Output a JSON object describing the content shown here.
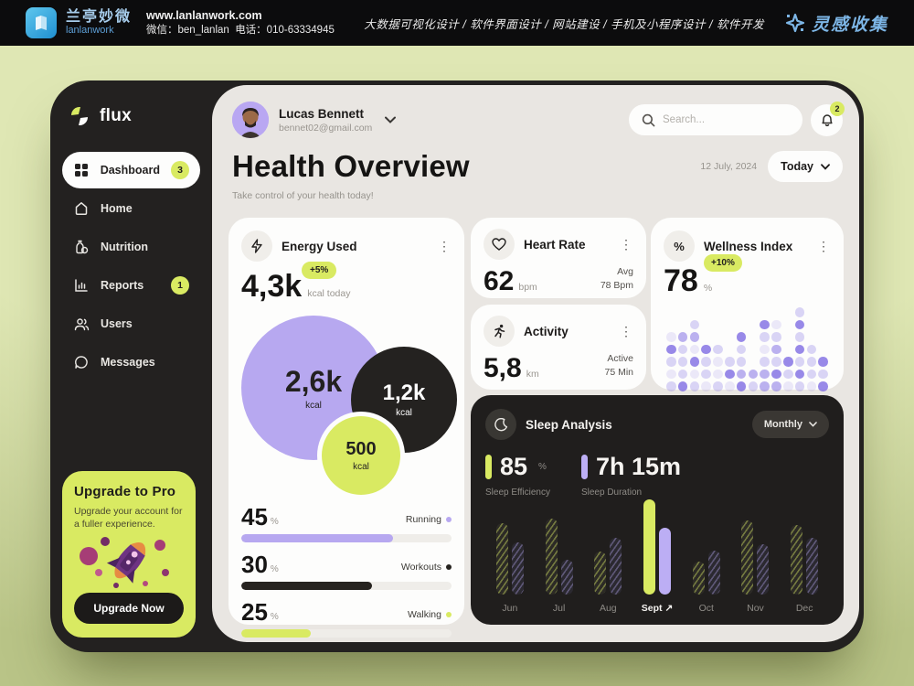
{
  "topbar": {
    "brand_cn": "兰亭妙微",
    "brand_en": "lanlanwork",
    "website": "www.lanlanwork.com",
    "wechat": "微信：ben_lanlan",
    "phone": "电话：010-63334945",
    "services": "大数据可视化设计 / 软件界面设计 / 网站建设 / 手机及小程序设计 / 软件开发",
    "collection": "灵感收集"
  },
  "sidebar": {
    "logo": "flux",
    "items": [
      {
        "label": "Dashboard",
        "icon": "grid-icon",
        "badge": "3",
        "active": true
      },
      {
        "label": "Home",
        "icon": "home-icon",
        "badge": "",
        "active": false
      },
      {
        "label": "Nutrition",
        "icon": "nutrition-icon",
        "badge": "",
        "active": false
      },
      {
        "label": "Reports",
        "icon": "reports-icon",
        "badge": "1",
        "active": false
      },
      {
        "label": "Users",
        "icon": "users-icon",
        "badge": "",
        "active": false
      },
      {
        "label": "Messages",
        "icon": "messages-icon",
        "badge": "",
        "active": false
      }
    ],
    "upgrade": {
      "title": "Upgrade to Pro",
      "description": "Upgrade your account for a fuller experience.",
      "button": "Upgrade Now"
    }
  },
  "header": {
    "user_name": "Lucas Bennett",
    "user_email": "bennet02@gmail.com",
    "search_placeholder": "Search...",
    "notification_count": "2",
    "date": "12 July, 2024",
    "range": "Today"
  },
  "page": {
    "title": "Health Overview",
    "subtitle": "Take control of your health today!"
  },
  "colors": {
    "lime": "#d9ea62",
    "purple": "#b7a8f0",
    "dark": "#26231f",
    "panel": "#e9e6e2"
  },
  "cards": {
    "energy": {
      "title": "Energy Used",
      "value": "4,3k",
      "badge": "+5%",
      "unit": "kcal today",
      "bubbles": [
        {
          "value": "2,6k",
          "unit": "kcal",
          "color": "purple"
        },
        {
          "value": "1,2k",
          "unit": "kcal",
          "color": "dark"
        },
        {
          "value": "500",
          "unit": "kcal",
          "color": "lime"
        }
      ],
      "breakdown": [
        {
          "value": "45",
          "unit": "%",
          "label": "Running",
          "color": "purple",
          "fill_pct": 72
        },
        {
          "value": "30",
          "unit": "%",
          "label": "Workouts",
          "color": "dark",
          "fill_pct": 62
        },
        {
          "value": "25",
          "unit": "%",
          "label": "Walking",
          "color": "lime",
          "fill_pct": 33
        }
      ]
    },
    "heart": {
      "title": "Heart Rate",
      "value": "62",
      "unit": "bpm",
      "side_top": "Avg",
      "side_bottom": "78 Bpm"
    },
    "activity": {
      "title": "Activity",
      "value": "5,8",
      "unit": "km",
      "side_top": "Active",
      "side_bottom": "75 Min"
    },
    "wellness": {
      "title": "Wellness Index",
      "value": "78",
      "unit": "%",
      "badge": "+10%",
      "dot_matrix": [
        [
          0,
          0,
          0,
          0,
          0,
          0,
          0,
          0,
          0,
          0,
          0,
          2,
          0,
          0
        ],
        [
          0,
          0,
          2,
          0,
          0,
          0,
          0,
          0,
          4,
          1,
          0,
          4,
          0,
          0
        ],
        [
          1,
          3,
          3,
          0,
          0,
          0,
          4,
          0,
          2,
          2,
          0,
          2,
          0,
          0
        ],
        [
          4,
          2,
          1,
          4,
          2,
          0,
          2,
          0,
          1,
          3,
          0,
          4,
          2,
          0
        ],
        [
          2,
          2,
          4,
          2,
          1,
          2,
          2,
          0,
          2,
          2,
          4,
          2,
          2,
          4
        ],
        [
          1,
          2,
          1,
          2,
          1,
          4,
          3,
          3,
          3,
          4,
          2,
          4,
          2,
          2
        ],
        [
          2,
          4,
          2,
          1,
          2,
          1,
          4,
          2,
          3,
          3,
          1,
          2,
          1,
          4
        ]
      ],
      "dot_opacity_levels": [
        0,
        0.14,
        0.28,
        0.52,
        0.8
      ]
    },
    "sleep": {
      "title": "Sleep Analysis",
      "filter": "Monthly",
      "stats": [
        {
          "value": "85",
          "unit": "%",
          "label": "Sleep Efficiency",
          "color": "lime"
        },
        {
          "value": "7h 15m",
          "unit": "",
          "label": "Sleep Duration",
          "color": "purple"
        }
      ],
      "chart_data": {
        "type": "bar",
        "categories": [
          "Jun",
          "Jul",
          "Aug",
          "Sept",
          "Oct",
          "Nov",
          "Dec"
        ],
        "series": [
          {
            "name": "Sleep Efficiency",
            "values": [
              70,
              74,
              42,
              93,
              32,
              72,
              68
            ]
          },
          {
            "name": "Sleep Duration",
            "values": [
              51,
              34,
              55,
              65,
              43,
              49,
              55
            ]
          }
        ],
        "highlight_category": "Sept",
        "highlight_suffix": " ↗",
        "ylim": [
          0,
          100
        ],
        "legend_position": "none",
        "grid": false
      }
    }
  }
}
